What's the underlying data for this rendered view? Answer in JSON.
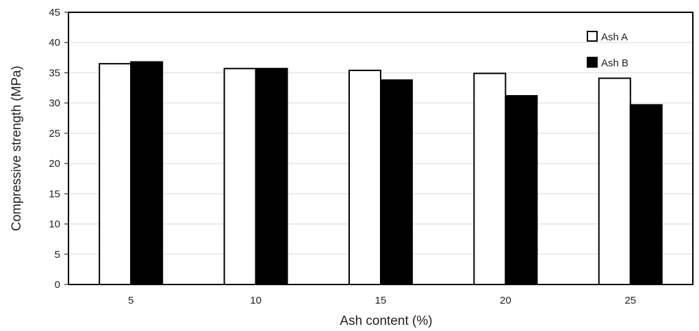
{
  "chart_data": {
    "type": "bar",
    "title": "",
    "xlabel": "Ash content (%)",
    "ylabel": "Compressive strength (MPa)",
    "categories": [
      "5",
      "10",
      "15",
      "20",
      "25"
    ],
    "series": [
      {
        "name": "Ash A",
        "values": [
          36.5,
          35.7,
          35.4,
          34.9,
          34.1
        ],
        "color": "#ffffff"
      },
      {
        "name": "Ash B",
        "values": [
          36.8,
          35.7,
          33.8,
          31.2,
          29.7
        ],
        "color": "#000000"
      }
    ],
    "ylim": [
      0,
      45
    ],
    "yticks": [
      "0",
      "5",
      "10",
      "15",
      "20",
      "25",
      "30",
      "35",
      "40",
      "45"
    ],
    "grid": true,
    "legend_position": "top-right"
  }
}
